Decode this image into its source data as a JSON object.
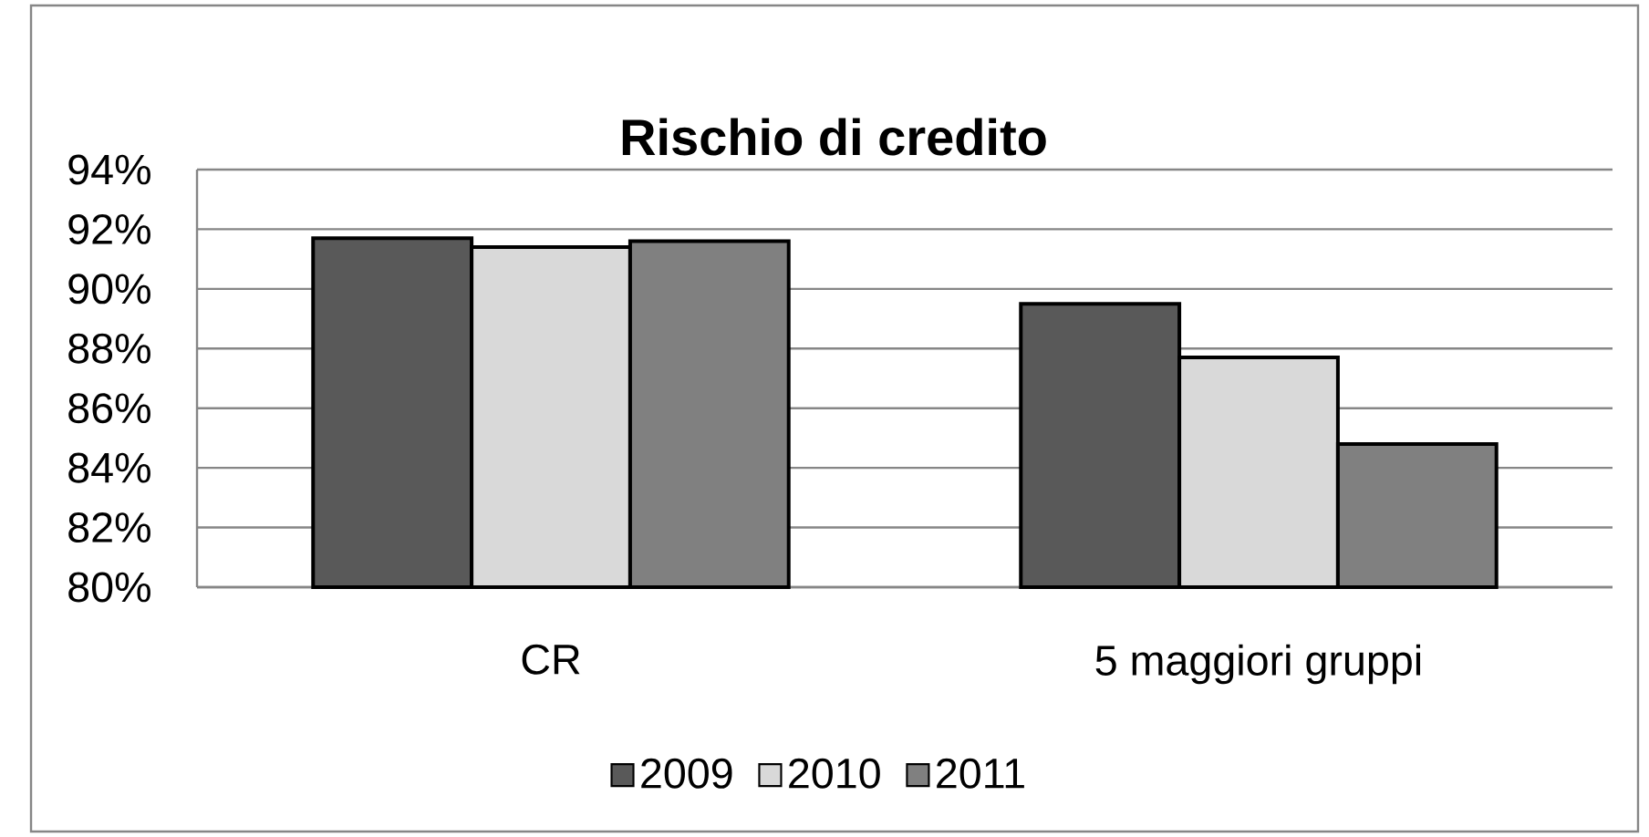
{
  "chart_data": {
    "type": "bar",
    "title": "Rischio di credito",
    "categories": [
      "CR",
      "5 maggiori gruppi"
    ],
    "series": [
      {
        "name": "2009",
        "color": "#595959",
        "values": [
          91.7,
          89.5
        ]
      },
      {
        "name": "2010",
        "color": "#d9d9d9",
        "values": [
          91.4,
          87.7
        ]
      },
      {
        "name": "2011",
        "color": "#808080",
        "values": [
          91.6,
          84.8
        ]
      }
    ],
    "ylim": [
      80,
      94
    ],
    "yticks": [
      {
        "value": 80,
        "label": "80%"
      },
      {
        "value": 82,
        "label": "82%"
      },
      {
        "value": 84,
        "label": "84%"
      },
      {
        "value": 86,
        "label": "86%"
      },
      {
        "value": 88,
        "label": "88%"
      },
      {
        "value": 90,
        "label": "90%"
      },
      {
        "value": 92,
        "label": "92%"
      },
      {
        "value": 94,
        "label": "94%"
      }
    ],
    "grid": "y",
    "legend": "bottom"
  }
}
